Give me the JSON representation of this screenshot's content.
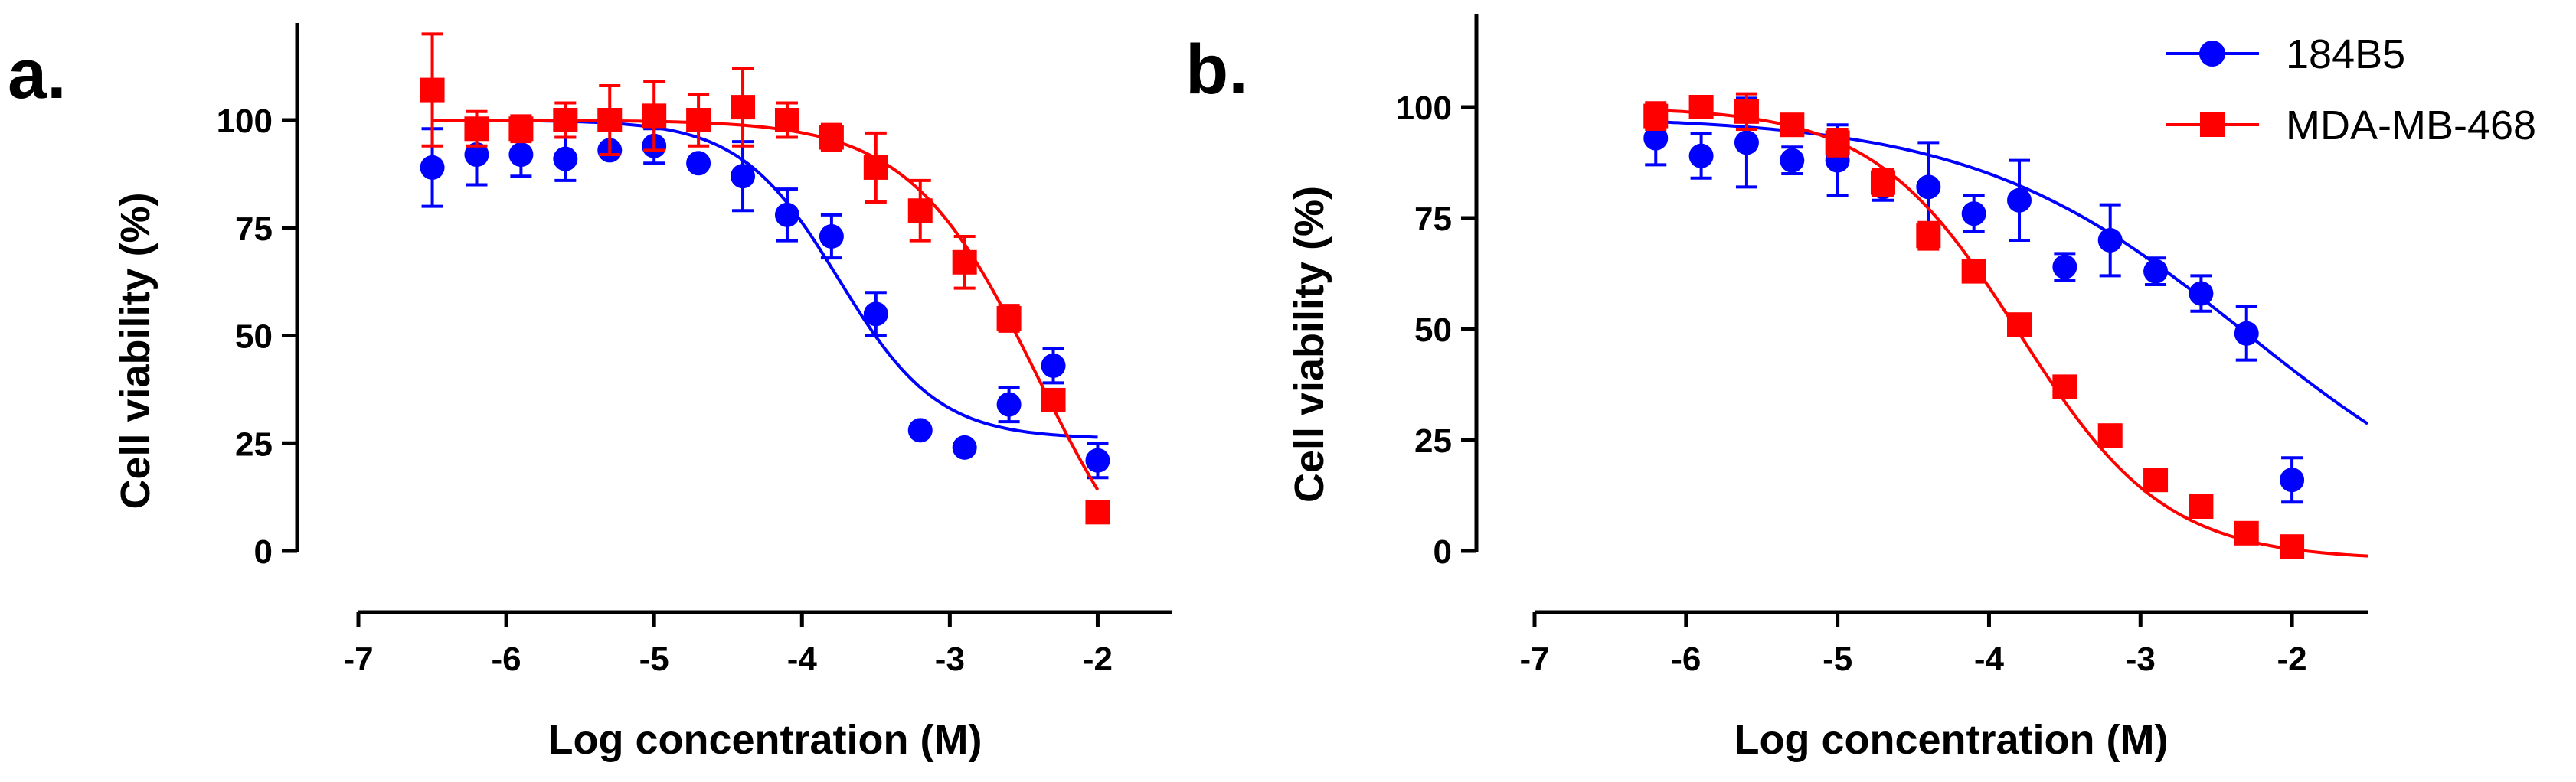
{
  "chart_data": [
    {
      "type": "scatter",
      "panel_label": "a.",
      "xlabel": "Log concentration (M)",
      "ylabel": "Cell viability (%)",
      "xlim": [
        -7,
        -1.5
      ],
      "ylim": [
        0,
        125
      ],
      "xticks": [
        -7,
        -6,
        -5,
        -4,
        -3,
        -2
      ],
      "xtick_labels": [
        "-7",
        "-6",
        "-5",
        "-4",
        "-3",
        "-2"
      ],
      "yticks": [
        0,
        25,
        50,
        75,
        100
      ],
      "ytick_labels": [
        "0",
        "25",
        "50",
        "75",
        "100"
      ],
      "grid": false,
      "series": [
        {
          "name": "184B5",
          "color": "#0000ff",
          "marker": "circle",
          "x": [
            -6.5,
            -6.2,
            -5.9,
            -5.6,
            -5.3,
            -5.0,
            -4.7,
            -4.4,
            -4.1,
            -3.8,
            -3.5,
            -3.2,
            -2.9,
            -2.6,
            -2.3,
            -2.0
          ],
          "y": [
            89,
            92,
            92,
            91,
            93,
            94,
            90,
            87,
            78,
            73,
            55,
            28,
            24,
            34,
            43,
            21
          ],
          "err": [
            9,
            7,
            5,
            5,
            0,
            4,
            0,
            8,
            6,
            5,
            5,
            0,
            0,
            4,
            4,
            4
          ],
          "curve": {
            "top": 100,
            "bottom": 26,
            "logEC50": -3.75,
            "hill": 1.3,
            "x_from": -6.5,
            "x_to": -2.0
          }
        },
        {
          "name": "MDA-MB-468",
          "color": "#ff0000",
          "marker": "square",
          "x": [
            -6.5,
            -6.2,
            -5.9,
            -5.6,
            -5.3,
            -5.0,
            -4.7,
            -4.4,
            -4.1,
            -3.8,
            -3.5,
            -3.2,
            -2.9,
            -2.6,
            -2.3,
            -2.0
          ],
          "y": [
            107,
            98,
            98,
            100,
            100,
            101,
            100,
            103,
            100,
            96,
            89,
            79,
            67,
            54,
            35,
            9
          ],
          "err": [
            13,
            4,
            3,
            4,
            8,
            8,
            6,
            9,
            4,
            3,
            8,
            7,
            6,
            3,
            0,
            0
          ],
          "curve": {
            "top": 100,
            "bottom": -20,
            "logEC50": -2.4,
            "hill": 1.0,
            "x_from": -6.5,
            "x_to": -2.0
          }
        }
      ]
    },
    {
      "type": "scatter",
      "panel_label": "b.",
      "xlabel": "Log concentration (M)",
      "ylabel": "Cell viability (%)",
      "xlim": [
        -7,
        -1.5
      ],
      "ylim": [
        0,
        120
      ],
      "xticks": [
        -7,
        -6,
        -5,
        -4,
        -3,
        -2
      ],
      "xtick_labels": [
        "-7",
        "-6",
        "-5",
        "-4",
        "-3",
        "-2"
      ],
      "yticks": [
        0,
        25,
        50,
        75,
        100
      ],
      "ytick_labels": [
        "0",
        "25",
        "50",
        "75",
        "100"
      ],
      "grid": false,
      "legend": {
        "position": "top-right",
        "entries": [
          "184B5",
          "MDA-MB-468"
        ]
      },
      "series": [
        {
          "name": "184B5",
          "color": "#0000ff",
          "marker": "circle",
          "x": [
            -6.2,
            -5.9,
            -5.6,
            -5.3,
            -5.0,
            -4.7,
            -4.4,
            -4.1,
            -3.8,
            -3.5,
            -3.2,
            -2.9,
            -2.6,
            -2.3,
            -2.0
          ],
          "y": [
            93,
            89,
            92,
            88,
            88,
            82,
            82,
            76,
            79,
            64,
            70,
            63,
            58,
            49,
            16
          ],
          "err": [
            6,
            5,
            10,
            3,
            8,
            3,
            10,
            4,
            9,
            3,
            8,
            3,
            4,
            6,
            5
          ],
          "curve": {
            "top": 98,
            "bottom": 0,
            "logEC50": -2.3,
            "hill": 0.48,
            "x_from": -6.2,
            "x_to": -1.5
          }
        },
        {
          "name": "MDA-MB-468",
          "color": "#ff0000",
          "marker": "square",
          "x": [
            -6.2,
            -5.9,
            -5.6,
            -5.3,
            -5.0,
            -4.7,
            -4.4,
            -4.1,
            -3.8,
            -3.5,
            -3.2,
            -2.9,
            -2.6,
            -2.3,
            -2.0
          ],
          "y": [
            98,
            100,
            99,
            96,
            92,
            83,
            71,
            63,
            51,
            37,
            26,
            16,
            10,
            4,
            1
          ],
          "err": [
            3,
            2,
            4,
            0,
            3,
            3,
            3,
            0,
            0,
            0,
            0,
            0,
            0,
            0,
            0
          ],
          "curve": {
            "top": 100,
            "bottom": -2,
            "logEC50": -3.8,
            "hill": 0.9,
            "x_from": -6.2,
            "x_to": -1.5
          }
        }
      ]
    }
  ]
}
